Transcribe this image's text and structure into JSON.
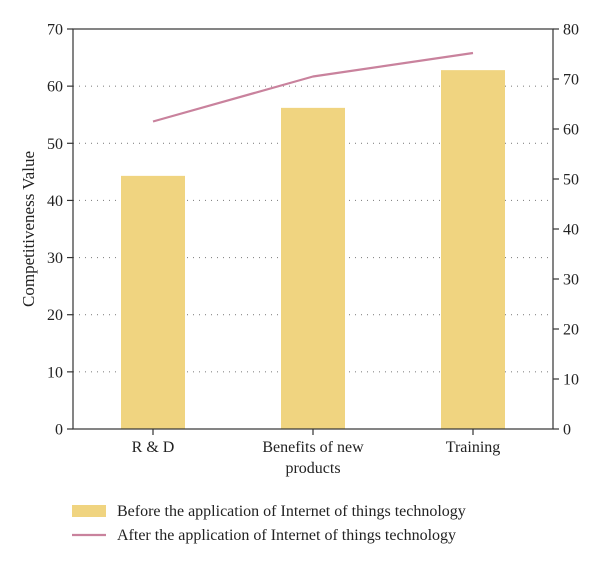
{
  "chart_data": {
    "type": "bar",
    "categories": [
      "R & D",
      "Benefits of new products",
      "Training"
    ],
    "category_lines": [
      [
        "R & D"
      ],
      [
        "Benefits of new",
        "products"
      ],
      [
        "Training"
      ]
    ],
    "series": [
      {
        "name": "Before the application of Internet of things technology",
        "type": "bar",
        "axis": "left",
        "values": [
          44.3,
          56.2,
          62.8
        ],
        "color": "#f0d480"
      },
      {
        "name": "After the application of Internet of things technology",
        "type": "line",
        "axis": "right",
        "values": [
          61.5,
          70.5,
          75.2
        ],
        "color": "#c9829d"
      }
    ],
    "ylabel": "Competitiveness Value",
    "ylim": [
      0,
      70
    ],
    "yticks": [
      0,
      10,
      20,
      30,
      40,
      50,
      60,
      70
    ],
    "y2lim": [
      0,
      80
    ],
    "y2ticks": [
      0,
      10,
      20,
      30,
      40,
      50,
      60,
      70,
      80
    ],
    "grid": "dotted horizontal",
    "legend_position": "bottom"
  }
}
